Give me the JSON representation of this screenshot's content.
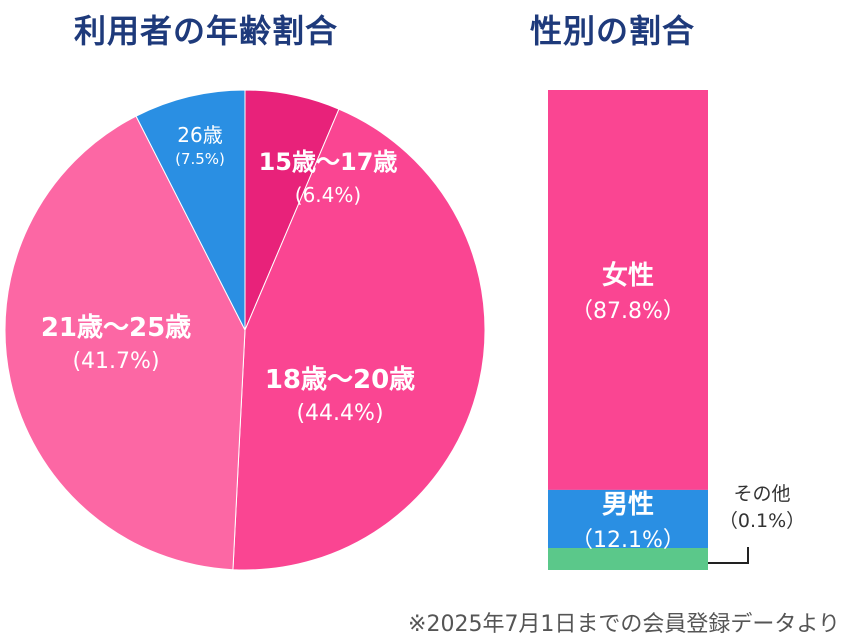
{
  "titles": {
    "age": "利用者の年齢割合",
    "gender": "性別の割合"
  },
  "footnote": "※2025年7月1日までの会員登録データより",
  "chart_data": [
    {
      "type": "pie",
      "title": "利用者の年齢割合",
      "slices": [
        {
          "name": "15歳〜17歳",
          "value": 6.4,
          "value_label": "(6.4%)",
          "color": "#e8227a"
        },
        {
          "name": "18歳〜20歳",
          "value": 44.4,
          "value_label": "(44.4%)",
          "color": "#fa4592"
        },
        {
          "name": "21歳〜25歳",
          "value": 41.7,
          "value_label": "(41.7%)",
          "color": "#fc67a4"
        },
        {
          "name": "26歳",
          "value": 7.5,
          "value_label": "(7.5%)",
          "color": "#2a8fe3"
        }
      ]
    },
    {
      "type": "bar",
      "stacked": true,
      "title": "性別の割合",
      "segments": [
        {
          "name": "女性",
          "value": 87.8,
          "value_label": "（87.8%）",
          "color": "#fa4592"
        },
        {
          "name": "男性",
          "value": 12.1,
          "value_label": "（12.1%）",
          "color": "#2a8fe3"
        },
        {
          "name": "その他",
          "value": 0.1,
          "value_label": "（0.1%）",
          "color": "#5bc88a"
        }
      ]
    }
  ]
}
